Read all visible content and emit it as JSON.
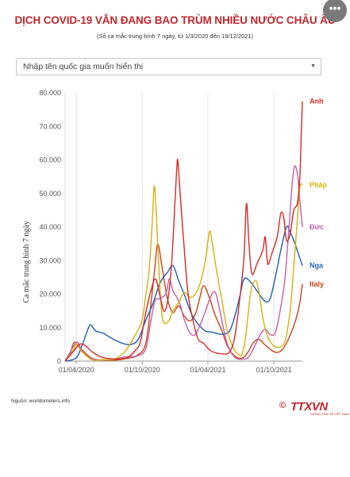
{
  "header": {
    "title": "DỊCH COVID-19 VẪN ĐANG BAO TRÙM NHIỀU NƯỚC CHÂU ÂU",
    "subtitle": "(Số ca mắc trung bình 7 ngày, từ 1/3/2020 đến 19/12/2021)",
    "menu_label": "•••"
  },
  "filter": {
    "placeholder": "Nhập tên quốc gia muốn hiển thị"
  },
  "footer": {
    "source": "Nguồn: worldometers.info",
    "logo_text": "TTXVN",
    "logo_symbol": "©",
    "logo_tagline": "THÔNG TẤN XÃ VIỆT NAM"
  },
  "chart_data": {
    "type": "line",
    "ylabel": "Ca mắc trung bình 7 ngày",
    "xlabel": "",
    "x_start": "2020-03-01",
    "x_end": "2021-12-19",
    "x_ticks": [
      {
        "date": "2020-04-01",
        "label": "01/04/2020"
      },
      {
        "date": "2020-10-01",
        "label": "01/10/2020"
      },
      {
        "date": "2021-04-01",
        "label": "01/04/2021"
      },
      {
        "date": "2021-10-01",
        "label": "01/10/2021"
      }
    ],
    "ylim": [
      0,
      80000
    ],
    "y_ticks": [
      {
        "value": 0,
        "label": "0"
      },
      {
        "value": 10000,
        "label": "10.000"
      },
      {
        "value": 20000,
        "label": "20.000"
      },
      {
        "value": 30000,
        "label": "30.000"
      },
      {
        "value": 40000,
        "label": "40.000"
      },
      {
        "value": 50000,
        "label": "50.000"
      },
      {
        "value": 60000,
        "label": "60.000"
      },
      {
        "value": 70000,
        "label": "70.000"
      },
      {
        "value": 80000,
        "label": "80.000"
      }
    ],
    "grid": {
      "vertical": true,
      "horizontal": false
    },
    "series": [
      {
        "name": "Anh",
        "color": "#d42a26",
        "points": [
          [
            "2020-03-01",
            0
          ],
          [
            "2020-03-25",
            3000
          ],
          [
            "2020-04-10",
            5000
          ],
          [
            "2020-04-25",
            4700
          ],
          [
            "2020-05-15",
            2800
          ],
          [
            "2020-06-10",
            1200
          ],
          [
            "2020-07-15",
            650
          ],
          [
            "2020-08-20",
            1000
          ],
          [
            "2020-09-10",
            3000
          ],
          [
            "2020-09-25",
            5500
          ],
          [
            "2020-10-10",
            14000
          ],
          [
            "2020-10-25",
            21000
          ],
          [
            "2020-11-07",
            24500
          ],
          [
            "2020-11-20",
            19000
          ],
          [
            "2020-12-01",
            14800
          ],
          [
            "2020-12-12",
            19000
          ],
          [
            "2020-12-22",
            30000
          ],
          [
            "2020-12-30",
            46000
          ],
          [
            "2021-01-05",
            58000
          ],
          [
            "2021-01-08",
            59500
          ],
          [
            "2021-01-14",
            50000
          ],
          [
            "2021-01-25",
            34000
          ],
          [
            "2021-02-05",
            20000
          ],
          [
            "2021-02-20",
            11500
          ],
          [
            "2021-03-05",
            6500
          ],
          [
            "2021-03-20",
            5300
          ],
          [
            "2021-04-10",
            3000
          ],
          [
            "2021-05-10",
            2200
          ],
          [
            "2021-05-31",
            2700
          ],
          [
            "2021-06-15",
            7500
          ],
          [
            "2021-06-30",
            20000
          ],
          [
            "2021-07-10",
            31000
          ],
          [
            "2021-07-17",
            47000
          ],
          [
            "2021-07-24",
            35000
          ],
          [
            "2021-08-01",
            26000
          ],
          [
            "2021-08-15",
            29000
          ],
          [
            "2021-08-31",
            33000
          ],
          [
            "2021-09-07",
            37000
          ],
          [
            "2021-09-14",
            29000
          ],
          [
            "2021-09-25",
            32000
          ],
          [
            "2021-10-10",
            37000
          ],
          [
            "2021-10-20",
            44000
          ],
          [
            "2021-10-28",
            43000
          ],
          [
            "2021-11-05",
            36000
          ],
          [
            "2021-11-15",
            38000
          ],
          [
            "2021-11-25",
            45000
          ],
          [
            "2021-12-05",
            47000
          ],
          [
            "2021-12-12",
            55000
          ],
          [
            "2021-12-16",
            68000
          ],
          [
            "2021-12-19",
            77500
          ]
        ]
      },
      {
        "name": "Pháp",
        "color": "#d8b011",
        "points": [
          [
            "2020-03-01",
            0
          ],
          [
            "2020-03-25",
            3500
          ],
          [
            "2020-04-02",
            5200
          ],
          [
            "2020-04-15",
            3000
          ],
          [
            "2020-05-15",
            400
          ],
          [
            "2020-06-15",
            450
          ],
          [
            "2020-07-15",
            550
          ],
          [
            "2020-08-15",
            3000
          ],
          [
            "2020-09-10",
            7500
          ],
          [
            "2020-09-30",
            12000
          ],
          [
            "2020-10-10",
            19000
          ],
          [
            "2020-10-20",
            27000
          ],
          [
            "2020-10-28",
            40000
          ],
          [
            "2020-11-03",
            52000
          ],
          [
            "2020-11-08",
            46000
          ],
          [
            "2020-11-15",
            30000
          ],
          [
            "2020-11-25",
            13500
          ],
          [
            "2020-12-10",
            11500
          ],
          [
            "2020-12-25",
            15000
          ],
          [
            "2021-01-10",
            17500
          ],
          [
            "2021-01-25",
            20500
          ],
          [
            "2021-02-10",
            19000
          ],
          [
            "2021-02-25",
            20000
          ],
          [
            "2021-03-10",
            23000
          ],
          [
            "2021-03-25",
            30000
          ],
          [
            "2021-04-05",
            38500
          ],
          [
            "2021-04-12",
            36000
          ],
          [
            "2021-04-25",
            27000
          ],
          [
            "2021-05-10",
            18000
          ],
          [
            "2021-05-25",
            9000
          ],
          [
            "2021-06-10",
            4000
          ],
          [
            "2021-06-25",
            2000
          ],
          [
            "2021-07-05",
            2200
          ],
          [
            "2021-07-15",
            7500
          ],
          [
            "2021-07-28",
            20000
          ],
          [
            "2021-08-10",
            24000
          ],
          [
            "2021-08-20",
            21000
          ],
          [
            "2021-09-01",
            12500
          ],
          [
            "2021-09-15",
            7000
          ],
          [
            "2021-10-01",
            4500
          ],
          [
            "2021-10-15",
            4200
          ],
          [
            "2021-11-01",
            6000
          ],
          [
            "2021-11-15",
            15000
          ],
          [
            "2021-11-25",
            28000
          ],
          [
            "2021-12-05",
            42000
          ],
          [
            "2021-12-12",
            52000
          ],
          [
            "2021-12-19",
            52500
          ]
        ]
      },
      {
        "name": "Đức",
        "color": "#c25fa8",
        "points": [
          [
            "2020-03-01",
            0
          ],
          [
            "2020-03-25",
            4500
          ],
          [
            "2020-04-05",
            5600
          ],
          [
            "2020-04-20",
            2500
          ],
          [
            "2020-05-15",
            700
          ],
          [
            "2020-06-15",
            400
          ],
          [
            "2020-07-15",
            500
          ],
          [
            "2020-08-15",
            1300
          ],
          [
            "2020-09-15",
            1500
          ],
          [
            "2020-10-10",
            3500
          ],
          [
            "2020-10-25",
            12000
          ],
          [
            "2020-11-05",
            18000
          ],
          [
            "2020-11-15",
            18500
          ],
          [
            "2020-12-05",
            20000
          ],
          [
            "2020-12-15",
            24500
          ],
          [
            "2020-12-25",
            21000
          ],
          [
            "2021-01-05",
            19000
          ],
          [
            "2021-01-15",
            16500
          ],
          [
            "2021-01-25",
            12500
          ],
          [
            "2021-02-10",
            8500
          ],
          [
            "2021-02-25",
            8000
          ],
          [
            "2021-03-15",
            12000
          ],
          [
            "2021-04-01",
            17000
          ],
          [
            "2021-04-15",
            20500
          ],
          [
            "2021-04-25",
            19500
          ],
          [
            "2021-05-10",
            12000
          ],
          [
            "2021-05-25",
            5000
          ],
          [
            "2021-06-15",
            1100
          ],
          [
            "2021-07-05",
            600
          ],
          [
            "2021-07-25",
            1500
          ],
          [
            "2021-08-20",
            7000
          ],
          [
            "2021-09-05",
            9500
          ],
          [
            "2021-09-20",
            8000
          ],
          [
            "2021-10-05",
            8500
          ],
          [
            "2021-10-20",
            16000
          ],
          [
            "2021-11-01",
            25000
          ],
          [
            "2021-11-12",
            40000
          ],
          [
            "2021-11-20",
            52000
          ],
          [
            "2021-11-27",
            58000
          ],
          [
            "2021-12-05",
            56000
          ],
          [
            "2021-12-12",
            48000
          ],
          [
            "2021-12-19",
            40000
          ]
        ]
      },
      {
        "name": "Nga",
        "color": "#1f5fb4",
        "points": [
          [
            "2020-03-01",
            0
          ],
          [
            "2020-04-01",
            1000
          ],
          [
            "2020-04-20",
            5500
          ],
          [
            "2020-05-05",
            10000
          ],
          [
            "2020-05-12",
            10800
          ],
          [
            "2020-05-25",
            9000
          ],
          [
            "2020-06-15",
            8300
          ],
          [
            "2020-07-10",
            6700
          ],
          [
            "2020-08-10",
            5200
          ],
          [
            "2020-09-01",
            5000
          ],
          [
            "2020-09-20",
            6500
          ],
          [
            "2020-10-10",
            12000
          ],
          [
            "2020-10-30",
            17000
          ],
          [
            "2020-11-20",
            23500
          ],
          [
            "2020-12-10",
            26500
          ],
          [
            "2020-12-25",
            28500
          ],
          [
            "2021-01-10",
            24000
          ],
          [
            "2021-01-25",
            20000
          ],
          [
            "2021-02-15",
            14000
          ],
          [
            "2021-03-05",
            11000
          ],
          [
            "2021-03-25",
            9000
          ],
          [
            "2021-04-15",
            8600
          ],
          [
            "2021-05-10",
            8000
          ],
          [
            "2021-05-31",
            9000
          ],
          [
            "2021-06-15",
            13500
          ],
          [
            "2021-06-30",
            20000
          ],
          [
            "2021-07-10",
            24500
          ],
          [
            "2021-07-25",
            24000
          ],
          [
            "2021-08-15",
            21000
          ],
          [
            "2021-09-05",
            18000
          ],
          [
            "2021-09-20",
            18500
          ],
          [
            "2021-10-05",
            25000
          ],
          [
            "2021-10-20",
            33000
          ],
          [
            "2021-11-05",
            40000
          ],
          [
            "2021-11-15",
            38500
          ],
          [
            "2021-11-25",
            36000
          ],
          [
            "2021-12-05",
            33000
          ],
          [
            "2021-12-19",
            28500
          ]
        ]
      },
      {
        "name": "Italy",
        "color": "#c8461a",
        "points": [
          [
            "2020-03-01",
            0
          ],
          [
            "2020-03-15",
            2300
          ],
          [
            "2020-03-25",
            5500
          ],
          [
            "2020-04-05",
            4800
          ],
          [
            "2020-04-20",
            3000
          ],
          [
            "2020-05-15",
            800
          ],
          [
            "2020-06-15",
            300
          ],
          [
            "2020-07-15",
            250
          ],
          [
            "2020-08-15",
            700
          ],
          [
            "2020-09-15",
            1600
          ],
          [
            "2020-10-10",
            5000
          ],
          [
            "2020-10-25",
            17000
          ],
          [
            "2020-11-05",
            28000
          ],
          [
            "2020-11-13",
            35000
          ],
          [
            "2020-11-25",
            28000
          ],
          [
            "2020-12-10",
            18500
          ],
          [
            "2020-12-25",
            14500
          ],
          [
            "2021-01-10",
            16500
          ],
          [
            "2021-01-25",
            13500
          ],
          [
            "2021-02-10",
            12000
          ],
          [
            "2021-02-25",
            14000
          ],
          [
            "2021-03-10",
            19000
          ],
          [
            "2021-03-20",
            22500
          ],
          [
            "2021-04-05",
            19000
          ],
          [
            "2021-04-20",
            14000
          ],
          [
            "2021-05-10",
            9000
          ],
          [
            "2021-05-25",
            4500
          ],
          [
            "2021-06-15",
            1500
          ],
          [
            "2021-07-05",
            900
          ],
          [
            "2021-07-20",
            2500
          ],
          [
            "2021-08-05",
            5500
          ],
          [
            "2021-08-20",
            6500
          ],
          [
            "2021-09-05",
            5000
          ],
          [
            "2021-09-25",
            3200
          ],
          [
            "2021-10-10",
            2600
          ],
          [
            "2021-10-25",
            3500
          ],
          [
            "2021-11-10",
            6500
          ],
          [
            "2021-11-25",
            10500
          ],
          [
            "2021-12-05",
            14000
          ],
          [
            "2021-12-12",
            17500
          ],
          [
            "2021-12-19",
            23000
          ]
        ]
      }
    ]
  }
}
